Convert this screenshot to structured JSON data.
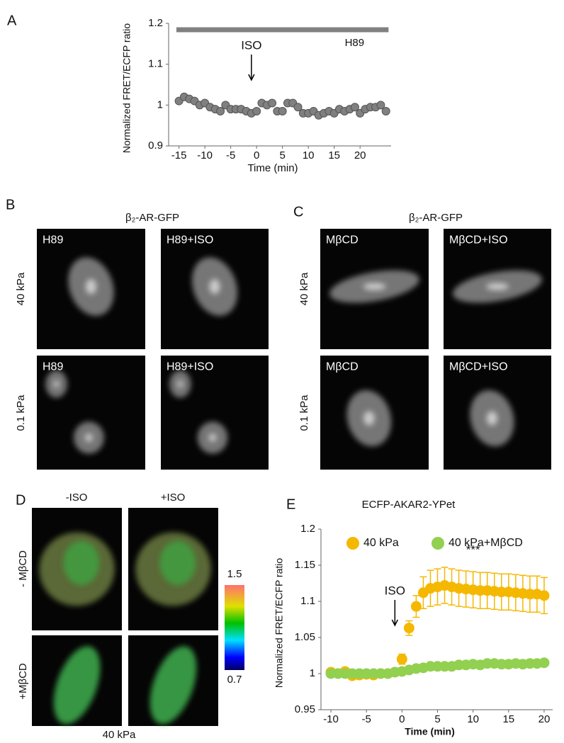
{
  "figure": {
    "labels": [
      "A",
      "B",
      "C",
      "D",
      "E"
    ]
  },
  "chart_data": [
    {
      "type": "scatter",
      "ylabel": "Normalized FRET/ECFP ratio",
      "xlabel": "Time (min)",
      "x": [
        -15,
        -14,
        -13,
        -12,
        -11,
        -10,
        -9,
        -8,
        -7,
        -6,
        -5,
        -4,
        -3,
        -2,
        -1,
        0,
        1,
        2,
        3,
        4,
        5,
        6,
        7,
        8,
        9,
        10,
        11,
        12,
        13,
        14,
        15,
        16,
        17,
        18,
        19,
        20,
        21,
        22,
        23,
        24,
        25
      ],
      "series": [
        {
          "color": "#808080",
          "values": [
            1.01,
            1.02,
            1.015,
            1.01,
            1.0,
            1.005,
            0.995,
            0.99,
            0.985,
            1.0,
            0.99,
            0.99,
            0.99,
            0.985,
            0.98,
            0.985,
            1.005,
            1.0,
            1.005,
            0.985,
            0.985,
            1.005,
            1.005,
            0.995,
            0.98,
            0.98,
            0.985,
            0.975,
            0.98,
            0.985,
            0.98,
            0.99,
            0.985,
            0.99,
            0.995,
            0.98,
            0.99,
            0.995,
            0.995,
            1.0,
            0.985
          ]
        }
      ],
      "xlim": [
        -17,
        26
      ],
      "xticks": [
        -15,
        -10,
        -5,
        0,
        5,
        10,
        15,
        20
      ],
      "ylim": [
        0.9,
        1.2
      ],
      "yticks": [
        0.9,
        1,
        1.1,
        1.2
      ],
      "band": {
        "label": "H89",
        "x": [
          -15.5,
          25.5
        ]
      },
      "annotations": [
        {
          "text": "ISO",
          "x": -1
        }
      ]
    },
    {
      "type": "scatter",
      "title": "ECFP-AKAR2-YPet",
      "ylabel": "Normalized FRET/ECFP ratio",
      "xlabel": "Time (min)",
      "x": [
        -10,
        -9,
        -8,
        -7,
        -6,
        -5,
        -4,
        -3,
        -2,
        -1,
        0,
        1,
        2,
        3,
        4,
        5,
        6,
        7,
        8,
        9,
        10,
        11,
        12,
        13,
        14,
        15,
        16,
        17,
        18,
        19,
        20
      ],
      "series": [
        {
          "name": "40 kPa",
          "color": "#f5b800",
          "values": [
            1.002,
            1.0,
            1.003,
            0.997,
            0.998,
            0.999,
            0.998,
            1.0,
            1.0,
            1.002,
            1.02,
            1.063,
            1.093,
            1.112,
            1.118,
            1.12,
            1.122,
            1.12,
            1.118,
            1.117,
            1.116,
            1.115,
            1.115,
            1.114,
            1.113,
            1.113,
            1.112,
            1.111,
            1.11,
            1.11,
            1.108
          ],
          "errors": [
            0.003,
            0.003,
            0.003,
            0.003,
            0.003,
            0.003,
            0.003,
            0.003,
            0.003,
            0.003,
            0.007,
            0.01,
            0.015,
            0.022,
            0.025,
            0.025,
            0.025,
            0.025,
            0.025,
            0.025,
            0.025,
            0.025,
            0.025,
            0.025,
            0.025,
            0.025,
            0.025,
            0.025,
            0.025,
            0.025,
            0.025
          ]
        },
        {
          "name": "40 kPa+MβCD",
          "color": "#92d050",
          "values": [
            1.0,
            1.0,
            1.0,
            1.0,
            1.0,
            1.0,
            1.0,
            1.0,
            1.0,
            1.002,
            1.003,
            1.005,
            1.007,
            1.008,
            1.01,
            1.01,
            1.01,
            1.01,
            1.012,
            1.012,
            1.013,
            1.012,
            1.014,
            1.014,
            1.013,
            1.013,
            1.014,
            1.013,
            1.014,
            1.014,
            1.015
          ]
        }
      ],
      "xlim": [
        -11.4,
        21.2
      ],
      "xticks": [
        -10,
        -5,
        0,
        5,
        10,
        15,
        20
      ],
      "ylim": [
        0.95,
        1.2
      ],
      "yticks": [
        0.95,
        1,
        1.05,
        1.1,
        1.15,
        1.2
      ],
      "legend": "top-left",
      "annotations": [
        {
          "text": "ISO",
          "x": -1
        },
        {
          "text": "***",
          "x": 10
        }
      ]
    }
  ],
  "panel_b": {
    "heading": "β₂-AR-GFP",
    "rows": [
      "40 kPa",
      "0.1 kPa"
    ],
    "tiles": [
      [
        "H89",
        "H89+ISO"
      ],
      [
        "H89",
        "H89+ISO"
      ]
    ]
  },
  "panel_c": {
    "heading": "β₂-AR-GFP",
    "rows": [
      "40 kPa",
      "0.1 kPa"
    ],
    "tiles": [
      [
        "MβCD",
        "MβCD+ISO"
      ],
      [
        "MβCD",
        "MβCD+ISO"
      ]
    ]
  },
  "panel_d": {
    "columns": [
      "-ISO",
      "+ISO"
    ],
    "rows": [
      "- MβCD",
      "+MβCD"
    ],
    "colorbar": {
      "max": 1.5,
      "min": 0.7
    },
    "footer": "40 kPa"
  }
}
